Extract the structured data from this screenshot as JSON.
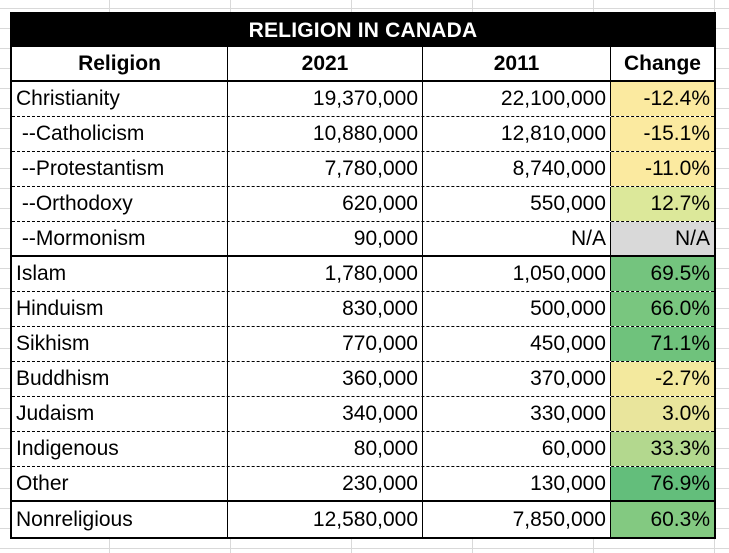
{
  "title": "RELIGION IN CANADA",
  "headers": [
    "Religion",
    "2021",
    "2011",
    "Change"
  ],
  "rows": [
    {
      "religion": "Christianity",
      "y2021": "19,370,000",
      "y2011": "22,100,000",
      "change": "-12.4%",
      "color": "#fbeaa0"
    },
    {
      "religion": " --Catholicism",
      "y2021": "10,880,000",
      "y2011": "12,810,000",
      "change": "-15.1%",
      "color": "#fbeaa0"
    },
    {
      "religion": " --Protestantism",
      "y2021": "7,780,000",
      "y2011": "8,740,000",
      "change": "-11.0%",
      "color": "#fbeaa0"
    },
    {
      "religion": " --Orthodoxy",
      "y2021": "620,000",
      "y2011": "550,000",
      "change": "12.7%",
      "color": "#dce89a"
    },
    {
      "religion": " --Mormonism",
      "y2021": "90,000",
      "y2011": "N/A",
      "change": "N/A",
      "color": "#d9d9d9"
    },
    {
      "religion": "Islam",
      "y2021": "1,780,000",
      "y2011": "1,050,000",
      "change": "69.5%",
      "color": "#74c47e"
    },
    {
      "religion": "Hinduism",
      "y2021": "830,000",
      "y2011": "500,000",
      "change": "66.0%",
      "color": "#79c67f"
    },
    {
      "religion": "Sikhism",
      "y2021": "770,000",
      "y2011": "450,000",
      "change": "71.1%",
      "color": "#6fc27c"
    },
    {
      "religion": "Buddhism",
      "y2021": "360,000",
      "y2011": "370,000",
      "change": "-2.7%",
      "color": "#f3e99e"
    },
    {
      "religion": "Judaism",
      "y2021": "340,000",
      "y2011": "330,000",
      "change": "3.0%",
      "color": "#e9e59c"
    },
    {
      "religion": "Indigenous",
      "y2021": "80,000",
      "y2011": "60,000",
      "change": "33.3%",
      "color": "#b3d88e"
    },
    {
      "religion": "Other",
      "y2021": "230,000",
      "y2011": "130,000",
      "change": "76.9%",
      "color": "#63be7b"
    },
    {
      "religion": "Nonreligious",
      "y2021": "12,580,000",
      "y2011": "7,850,000",
      "change": "60.3%",
      "color": "#83c981"
    }
  ]
}
